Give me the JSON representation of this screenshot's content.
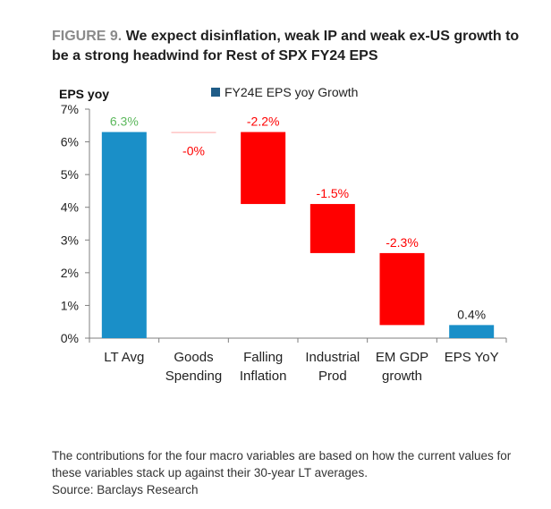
{
  "figure": {
    "number": "FIGURE 9.",
    "title": "We expect disinflation, weak IP and weak ex-US growth to be a strong headwind for Rest of SPX FY24 EPS"
  },
  "footnote": {
    "note": "The contributions for the four macro variables are based on how the current values for these variables stack up against their 30-year LT averages.",
    "source": "Source: Barclays Research"
  },
  "colors": {
    "total": "#1a8fc8",
    "negative": "#ff0000",
    "legend_swatch": "#1f5c87",
    "positive_label": "#5cb85c",
    "negative_label": "#ff0000",
    "neutral_label": "#222222"
  },
  "chart_data": {
    "type": "bar",
    "subtype": "waterfall",
    "ylabel": "EPS yoy",
    "ylim": [
      0,
      7
    ],
    "yticks": [
      "0%",
      "1%",
      "2%",
      "3%",
      "4%",
      "5%",
      "6%",
      "7%"
    ],
    "legend": {
      "position": "top",
      "entries": [
        "FY24E EPS yoy Growth"
      ]
    },
    "grid": false,
    "categories": [
      "LT Avg",
      "Goods Spending",
      "Falling Inflation",
      "Industrial Prod",
      "EM GDP growth",
      "EPS YoY"
    ],
    "category_lines": [
      [
        "LT Avg"
      ],
      [
        "Goods",
        "Spending"
      ],
      [
        "Falling",
        "Inflation"
      ],
      [
        "Industrial",
        "Prod"
      ],
      [
        "EM GDP",
        "growth"
      ],
      [
        "EPS YoY"
      ]
    ],
    "bars": [
      {
        "category": "LT Avg",
        "start": 0,
        "end": 6.3,
        "label": "6.3%",
        "kind": "total"
      },
      {
        "category": "Goods Spending",
        "start": 6.3,
        "end": 6.3,
        "label": "-0%",
        "kind": "negative"
      },
      {
        "category": "Falling Inflation",
        "start": 6.3,
        "end": 4.1,
        "label": "-2.2%",
        "kind": "negative"
      },
      {
        "category": "Industrial Prod",
        "start": 4.1,
        "end": 2.6,
        "label": "-1.5%",
        "kind": "negative"
      },
      {
        "category": "EM GDP growth",
        "start": 2.6,
        "end": 0.4,
        "label": "-2.3%",
        "kind": "negative"
      },
      {
        "category": "EPS YoY",
        "start": 0,
        "end": 0.4,
        "label": "0.4%",
        "kind": "total"
      }
    ]
  }
}
